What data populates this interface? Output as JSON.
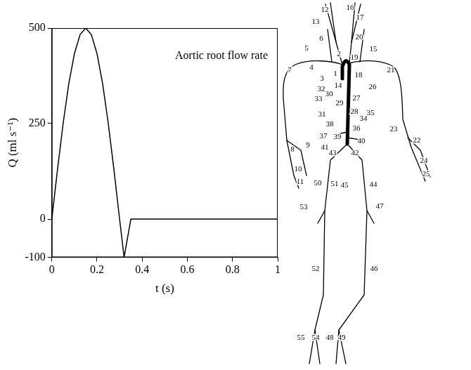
{
  "chart_data": {
    "type": "line",
    "title": "Aortic root flow rate",
    "x_label": "t (s)",
    "y_label": "Q (ml s⁻¹)",
    "x": [
      0,
      0.025,
      0.05,
      0.075,
      0.1,
      0.125,
      0.15,
      0.175,
      0.2,
      0.225,
      0.25,
      0.275,
      0.3,
      0.32,
      0.35,
      1
    ],
    "values": [
      0,
      129,
      250,
      354,
      433,
      483,
      500,
      483,
      433,
      354,
      250,
      129,
      0,
      -100,
      0,
      0
    ],
    "color": "#000000",
    "marker": "none",
    "line_style": "solid",
    "grid": false,
    "xlim": [
      0,
      1
    ],
    "xticks": [
      0,
      0.2,
      0.4,
      0.6,
      0.8,
      1
    ],
    "ylim": [
      -100,
      500
    ],
    "yticks": [
      -100,
      0,
      250,
      500
    ]
  },
  "diagram": {
    "labels": [
      "1",
      "2",
      "3",
      "4",
      "5",
      "6",
      "7",
      "8",
      "9",
      "10",
      "11",
      "12",
      "13",
      "14",
      "15",
      "16",
      "17",
      "18",
      "19",
      "20",
      "21",
      "22",
      "23",
      "24",
      "25",
      "26",
      "27",
      "28",
      "29",
      "30",
      "31",
      "32",
      "33",
      "34",
      "35",
      "36",
      "37",
      "38",
      "39",
      "40",
      "41",
      "42",
      "43",
      "44",
      "45",
      "46",
      "47",
      "48",
      "49",
      "50",
      "51",
      "52",
      "53",
      "54",
      "55"
    ]
  }
}
